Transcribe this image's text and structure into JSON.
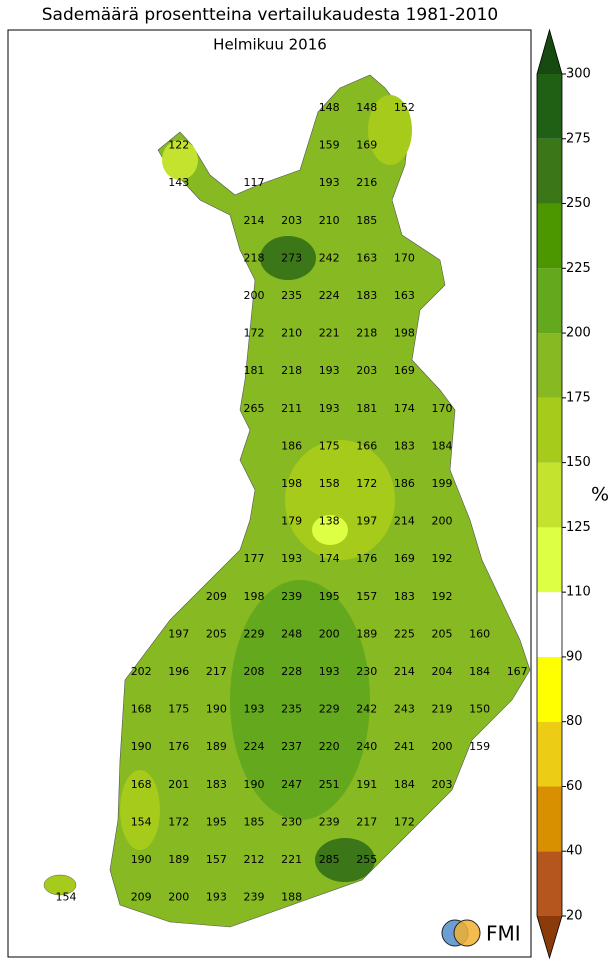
{
  "title": "Sademäärä prosentteina vertailukaudesta 1981-2010",
  "subtitle": "Helmikuu 2016",
  "stations": [
    [
      148,
      148,
      152
    ],
    [
      122,
      159,
      169
    ],
    [
      143,
      117,
      193,
      216
    ],
    [
      214,
      203,
      210,
      185
    ],
    [
      218,
      273,
      242,
      163,
      170
    ],
    [
      200,
      235,
      224,
      183,
      163
    ],
    [
      172,
      210,
      221,
      218,
      198
    ],
    [
      181,
      218,
      193,
      203,
      169
    ],
    [
      265,
      211,
      193,
      181,
      174,
      170
    ],
    [
      186,
      175,
      166,
      183,
      184
    ],
    [
      198,
      158,
      172,
      186,
      199
    ],
    [
      179,
      138,
      197,
      214,
      200
    ],
    [
      177,
      193,
      174,
      176,
      169,
      192
    ],
    [
      209,
      198,
      239,
      195,
      157,
      183,
      192
    ],
    [
      197,
      205,
      229,
      248,
      200,
      189,
      225,
      205,
      160
    ],
    [
      202,
      196,
      217,
      208,
      228,
      193,
      230,
      214,
      204,
      184,
      167
    ],
    [
      168,
      175,
      190,
      193,
      235,
      229,
      242,
      243,
      219,
      150
    ],
    [
      190,
      176,
      189,
      224,
      237,
      220,
      240,
      241,
      200,
      159
    ],
    [
      168,
      201,
      183,
      190,
      247,
      251,
      191,
      184,
      203
    ],
    [
      154,
      172,
      195,
      185,
      230,
      239,
      217,
      172
    ],
    [
      190,
      189,
      157,
      212,
      221,
      285,
      255
    ],
    [
      154,
      209,
      200,
      193,
      239,
      188
    ]
  ],
  "colorbar": {
    "unit": "%",
    "ticks": [
      20,
      40,
      60,
      80,
      90,
      110,
      125,
      150,
      175,
      200,
      225,
      250,
      275,
      300
    ],
    "colors": [
      "#b4561e",
      "#d99000",
      "#eccc14",
      "#ffff00",
      "#ffffff",
      "#ddff44",
      "#c4e32e",
      "#a6cb1b",
      "#86b922",
      "#63a81d",
      "#4c9600",
      "#3b7718",
      "#1f6014"
    ],
    "under_color": "#8b3a0a",
    "over_color": "#164a10"
  },
  "logo": "FMI"
}
